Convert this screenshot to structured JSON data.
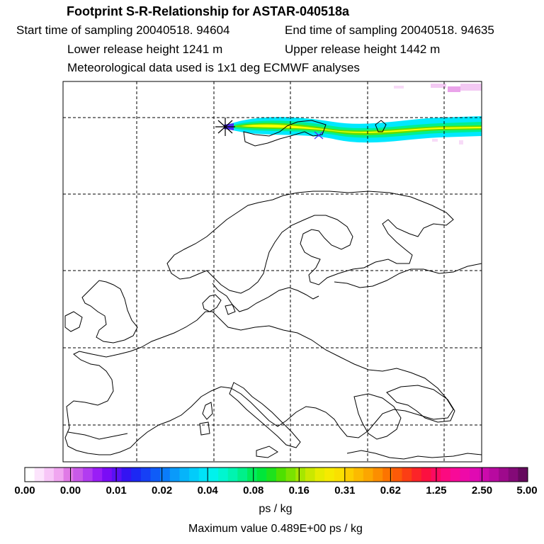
{
  "header": {
    "title": "Footprint S-R-Relationship for ASTAR-040518a",
    "start_sampling": "Start time of sampling 20040518. 94604",
    "end_sampling": "End time of sampling 20040518. 94635",
    "lower_release": "Lower release height 1241 m",
    "upper_release": "Upper release height 1442 m",
    "meteo": "Meteorological data used is 1x1 deg ECMWF analyses"
  },
  "colorbar": {
    "ticks": [
      "0.00",
      "0.00",
      "0.01",
      "0.02",
      "0.04",
      "0.08",
      "0.16",
      "0.31",
      "0.62",
      "1.25",
      "2.50",
      "5.00"
    ],
    "colors": [
      "#ffffff",
      "#fce4fc",
      "#f7c6f7",
      "#f0a6f0",
      "#e07ae6",
      "#c95ae8",
      "#b23cf0",
      "#9a1ef6",
      "#7a0cf6",
      "#5a10f4",
      "#3414f2",
      "#1c28f4",
      "#1640f6",
      "#0f5cf8",
      "#0a7cfa",
      "#0a9afa",
      "#06b4fa",
      "#02ccfa",
      "#00e2f8",
      "#00f2ec",
      "#00f6d0",
      "#00f4b0",
      "#00f08a",
      "#00ec5c",
      "#00e63a",
      "#1ee21c",
      "#4ee000",
      "#7ae200",
      "#a6e600",
      "#cae800",
      "#e6ec00",
      "#f6ea00",
      "#fae000",
      "#fcce00",
      "#fcba00",
      "#fca600",
      "#fc8e00",
      "#fc7400",
      "#fc5a08",
      "#fc3e14",
      "#fc2428",
      "#fc1040",
      "#fc0a60",
      "#fc0a80",
      "#f80a98",
      "#ee0aa8",
      "#e00ab2",
      "#cc0aac",
      "#b80aa0",
      "#9e0a8c",
      "#840a78",
      "#660a5e"
    ],
    "unit": "ps / kg"
  },
  "max_value": "Maximum value  0.489E+00 ps / kg",
  "map": {
    "projection": "lat-lon",
    "gridlines": "dashed",
    "release_site_marker": "star",
    "plume_colors": [
      "#00ffff",
      "#00ff80",
      "#40e000",
      "#c0e600",
      "#ffff00"
    ]
  }
}
